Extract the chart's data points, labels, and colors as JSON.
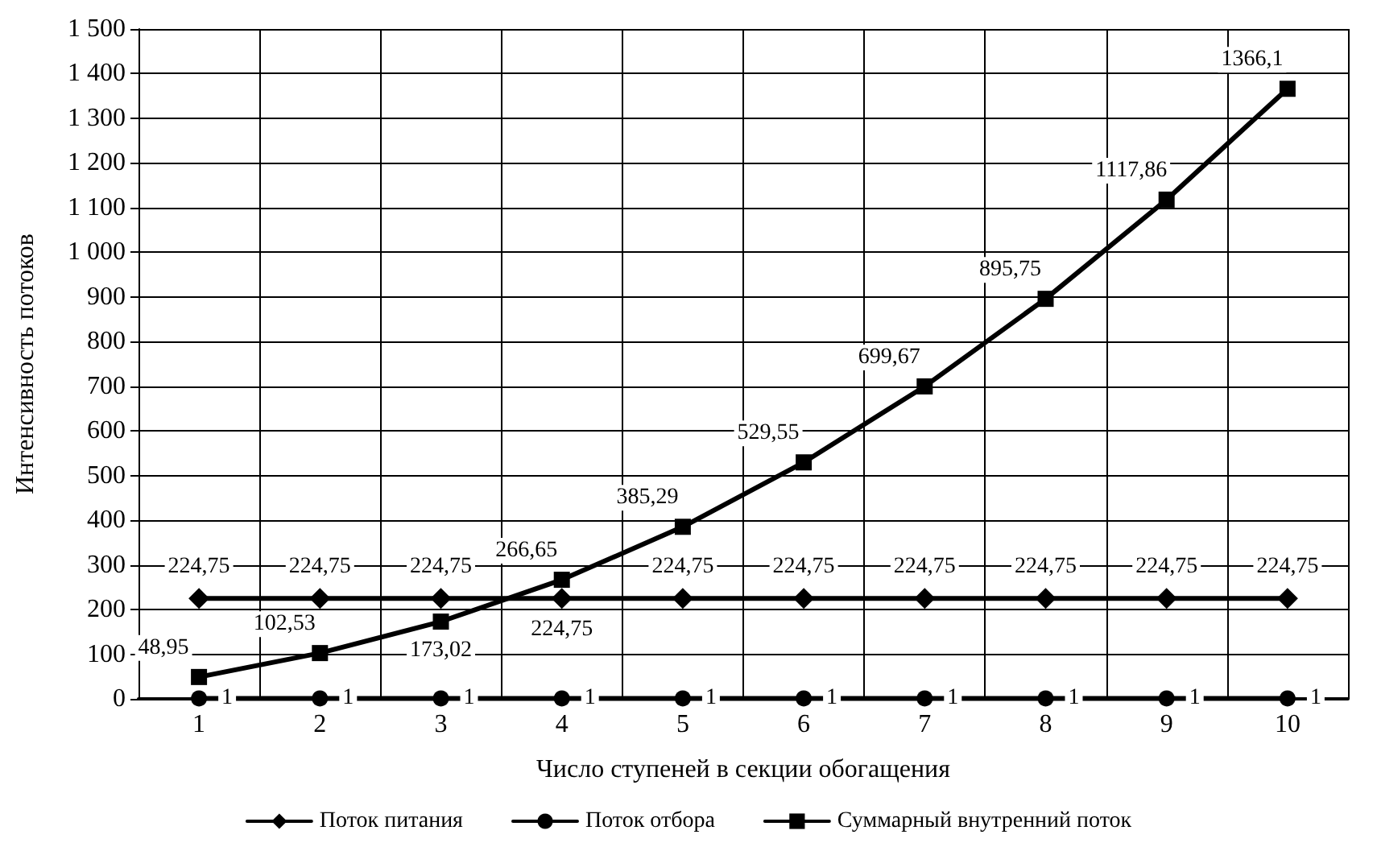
{
  "chart_data": {
    "type": "line",
    "xlabel": "Число ступеней в секции обогащения",
    "ylabel": "Интенсивность потоков",
    "categories": [
      "1",
      "2",
      "3",
      "4",
      "5",
      "6",
      "7",
      "8",
      "9",
      "10"
    ],
    "series": [
      {
        "name": "Поток питания",
        "color": "#000000",
        "marker": "diamond",
        "values": [
          224.75,
          224.75,
          224.75,
          224.75,
          224.75,
          224.75,
          224.75,
          224.75,
          224.75,
          224.75
        ],
        "value_labels": [
          "224,75",
          "224,75",
          "224,75",
          "224,75",
          "224,75",
          "224,75",
          "224,75",
          "224,75",
          "224,75",
          "224,75"
        ]
      },
      {
        "name": "Поток отбора",
        "color": "#000000",
        "marker": "circle",
        "values": [
          1,
          1,
          1,
          1,
          1,
          1,
          1,
          1,
          1,
          1
        ],
        "value_labels": [
          "1",
          "1",
          "1",
          "1",
          "1",
          "1",
          "1",
          "1",
          "1",
          "1"
        ]
      },
      {
        "name": "Суммарный внутренний поток",
        "color": "#000000",
        "marker": "square",
        "values": [
          48.95,
          102.53,
          173.02,
          266.65,
          385.29,
          529.55,
          699.67,
          895.75,
          1117.86,
          1366.1
        ],
        "value_labels": [
          "48,95",
          "102,53",
          "173,02",
          "266,65",
          "385,29",
          "529,55",
          "699,67",
          "895,75",
          "1117,86",
          "1366,1"
        ]
      }
    ],
    "ylim": [
      0,
      1500
    ],
    "yticks": [
      0,
      100,
      200,
      300,
      400,
      500,
      600,
      700,
      800,
      900,
      {
        "value": 1000,
        "label": "1 000"
      },
      {
        "value": 1100,
        "label": "1 100"
      },
      {
        "value": 1200,
        "label": "1 200"
      },
      {
        "value": 1300,
        "label": "1 300"
      },
      {
        "value": 1400,
        "label": "1 400"
      },
      {
        "value": 1500,
        "label": "1 500"
      }
    ],
    "grid": true,
    "legend": "bottom",
    "line_style": "solid"
  }
}
